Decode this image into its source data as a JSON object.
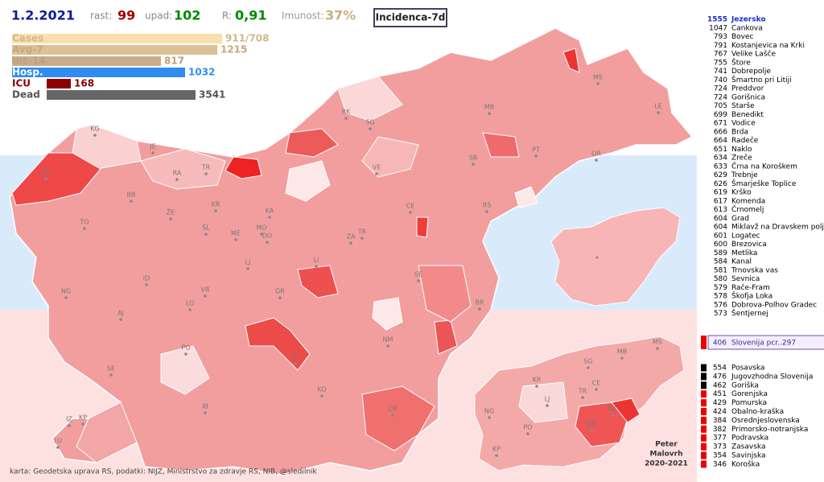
{
  "header": {
    "date": "1.2.2021",
    "growth_label": "rast:",
    "growth": 99,
    "decline_label": "upad:",
    "decline": 102,
    "r_label": "R:",
    "r": "0,91",
    "immunity_label": "Imunost:",
    "immunity": "37%",
    "mode": "Incidenca-7d"
  },
  "stats": [
    {
      "label": "Cases",
      "value": "911/708"
    },
    {
      "label": "Avg-7",
      "value": 1215
    },
    {
      "label": "Inc-14",
      "value": 817
    },
    {
      "label": "Hosp.",
      "value": 1032
    },
    {
      "label": "ICU",
      "value": 168
    },
    {
      "label": "Dead",
      "value": 3541
    }
  ],
  "municipalities": [
    {
      "value": 1555,
      "name": "Jezersko"
    },
    {
      "value": 1047,
      "name": "Cankova"
    },
    {
      "value": 793,
      "name": "Bovec"
    },
    {
      "value": 791,
      "name": "Kostanjevica na Krki"
    },
    {
      "value": 767,
      "name": "Velike Lašče"
    },
    {
      "value": 755,
      "name": "Štore"
    },
    {
      "value": 741,
      "name": "Dobrepolje"
    },
    {
      "value": 740,
      "name": "Šmartno pri Litiji"
    },
    {
      "value": 724,
      "name": "Preddvor"
    },
    {
      "value": 724,
      "name": "Gorišnica"
    },
    {
      "value": 705,
      "name": "Starše"
    },
    {
      "value": 699,
      "name": "Benedikt"
    },
    {
      "value": 671,
      "name": "Vodice"
    },
    {
      "value": 666,
      "name": "Brda"
    },
    {
      "value": 664,
      "name": "Radeče"
    },
    {
      "value": 651,
      "name": "Naklo"
    },
    {
      "value": 634,
      "name": "Zreče"
    },
    {
      "value": 633,
      "name": "Črna na Koroškem"
    },
    {
      "value": 629,
      "name": "Trebnje"
    },
    {
      "value": 626,
      "name": "Šmarješke Toplice"
    },
    {
      "value": 619,
      "name": "Krško"
    },
    {
      "value": 617,
      "name": "Komenda"
    },
    {
      "value": 613,
      "name": "Črnomelj"
    },
    {
      "value": 604,
      "name": "Grad"
    },
    {
      "value": 604,
      "name": "Miklavž na Dravskem polju"
    },
    {
      "value": 601,
      "name": "Logatec"
    },
    {
      "value": 600,
      "name": "Brezovica"
    },
    {
      "value": 589,
      "name": "Metlika"
    },
    {
      "value": 584,
      "name": "Kanal"
    },
    {
      "value": 581,
      "name": "Trnovska vas"
    },
    {
      "value": 580,
      "name": "Sevnica"
    },
    {
      "value": 579,
      "name": "Rače-Fram"
    },
    {
      "value": 578,
      "name": "Škofja Loka"
    },
    {
      "value": 576,
      "name": "Dobrova-Polhov Gradec"
    },
    {
      "value": 573,
      "name": "Šentjernej"
    }
  ],
  "slovenia": {
    "value": 406,
    "label": "Slovenija pcr..297"
  },
  "regions": [
    {
      "value": 554,
      "name": "Posavska",
      "color": "#000000"
    },
    {
      "value": 476,
      "name": "Jugovzhodna Slovenija",
      "color": "#000000"
    },
    {
      "value": 462,
      "name": "Goriška",
      "color": "#000000"
    },
    {
      "value": 451,
      "name": "Gorenjska",
      "color": "#ee0000"
    },
    {
      "value": 429,
      "name": "Pomurska",
      "color": "#ee0000"
    },
    {
      "value": 424,
      "name": "Obalno-kraška",
      "color": "#ee0000"
    },
    {
      "value": 384,
      "name": "Osrednjeslovenska",
      "color": "#ee0000"
    },
    {
      "value": 382,
      "name": "Primorsko-notranjska",
      "color": "#ee0000"
    },
    {
      "value": 377,
      "name": "Podravska",
      "color": "#ee0000"
    },
    {
      "value": 373,
      "name": "Zasavska",
      "color": "#ee0000"
    },
    {
      "value": 354,
      "name": "Savinjska",
      "color": "#ee0000"
    },
    {
      "value": 346,
      "name": "Koroška",
      "color": "#ee0000"
    }
  ],
  "map_labels": [
    "KG",
    "JE",
    "RA",
    "TR",
    "KR",
    "BB",
    "ŽE",
    "ŠL",
    "ME",
    "KA",
    "MO",
    "DO",
    "TO",
    "LJ",
    "ZA",
    "TR",
    "CE",
    "RS",
    "ID",
    "LI",
    "SE",
    "NG",
    "VR",
    "GR",
    "AJ",
    "LO",
    "PO",
    "NM",
    "BR",
    "RI",
    "KO",
    "ČR",
    "IB",
    "SE",
    "IZ",
    "KP",
    "LU",
    "RK",
    "SG",
    "VE",
    "SB",
    "MB",
    "PT",
    "OR",
    "MS",
    "LE",
    "GO"
  ],
  "mini_map_labels": [
    "KR",
    "SG",
    "MB",
    "MS",
    "CE",
    "TR",
    "NG",
    "LJ",
    "PO",
    "NM",
    "KK",
    "KP"
  ],
  "footer": "karta: Geodetska uprava RS, podatki: NIJZ, Ministrstvo za zdravje RS, NIB, @sledilnik",
  "author": [
    "Peter",
    "Malovrh",
    "2020-2021"
  ]
}
